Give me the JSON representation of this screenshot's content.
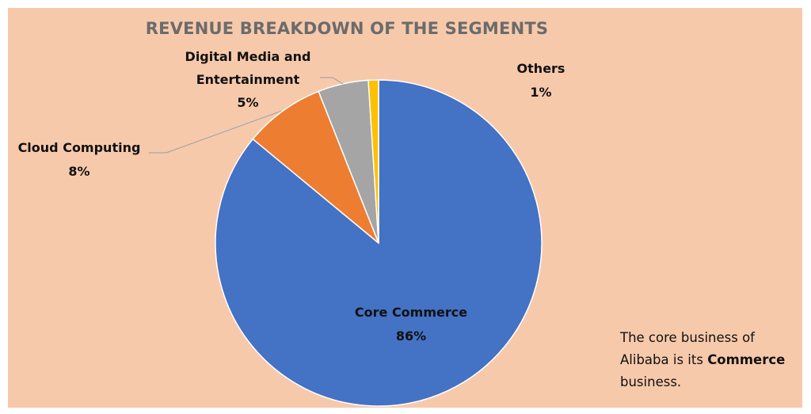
{
  "colors": {
    "background": "#f7c9ab",
    "core_commerce": "#4472c4",
    "cloud_computing": "#ed7d31",
    "digital_media": "#a5a5a5",
    "others": "#ffc000",
    "leader_line": "#a6a6a6"
  },
  "chart_data": {
    "type": "pie",
    "title": "REVENUE BREAKDOWN OF THE SEGMENTS",
    "slices": [
      {
        "label": "Core Commerce",
        "label_lines": [
          "Core Commerce"
        ],
        "percent_text": "86%",
        "value": 86,
        "color": "#4472c4"
      },
      {
        "label": "Cloud Computing",
        "label_lines": [
          "Cloud Computing"
        ],
        "percent_text": "8%",
        "value": 8,
        "color": "#ed7d31"
      },
      {
        "label": "Digital Media and Entertainment",
        "label_lines": [
          "Digital Media and",
          "Entertainment"
        ],
        "percent_text": "5%",
        "value": 5,
        "color": "#a5a5a5"
      },
      {
        "label": "Others",
        "label_lines": [
          "Others"
        ],
        "percent_text": "1%",
        "value": 1,
        "color": "#ffc000"
      }
    ],
    "legend": "none",
    "data_labels": "outside-with-leader-lines"
  },
  "note": {
    "line1": "The core business of",
    "line2_prefix": "Alibaba is its ",
    "line2_bold": "Commerce",
    "line3": "business."
  }
}
